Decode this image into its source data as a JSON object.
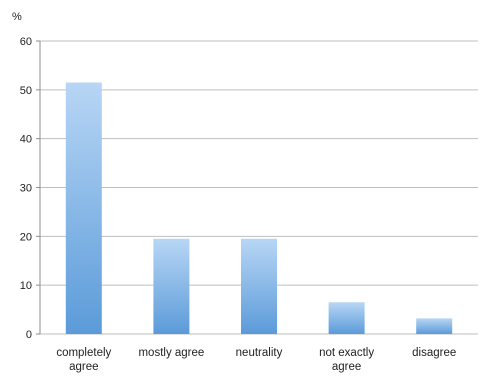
{
  "chart_data": {
    "type": "bar",
    "ylabel": "%",
    "ylim": [
      0,
      60
    ],
    "yticks": [
      0,
      10,
      20,
      30,
      40,
      50,
      60
    ],
    "grid": true,
    "categories": [
      "completely agree",
      "mostly agree",
      "neutrality",
      "not exactly agree",
      "disagree"
    ],
    "category_lines": [
      [
        "completely",
        "agree"
      ],
      [
        "mostly agree"
      ],
      [
        "neutrality"
      ],
      [
        "not exactly",
        "agree"
      ],
      [
        "disagree"
      ]
    ],
    "values": [
      51.5,
      19.5,
      19.5,
      6.5,
      3.2
    ],
    "colors": {
      "bar_top": "#b8d6f5",
      "bar_bottom": "#5b9bd9",
      "gridline": "#bfbfbf",
      "axis": "#8c8c8c"
    }
  }
}
